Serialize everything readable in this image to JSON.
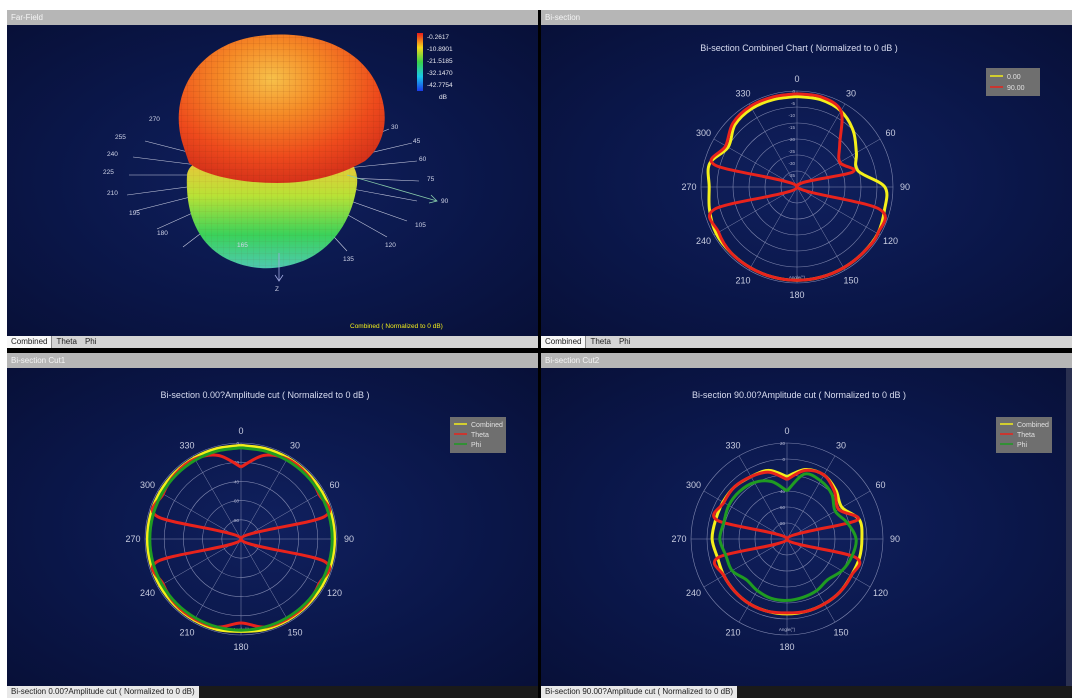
{
  "colors": {
    "combined": "#f4ef1a",
    "theta": "#e8231c",
    "phi": "#1f9b22",
    "ring": "#8088b0",
    "panel_bg": "#0a1446"
  },
  "panels": {
    "farfield": {
      "title": "Far-Field",
      "caption": "Combined ( Normalized to 0 dB)",
      "tabs": [
        "Combined",
        "Theta",
        "Phi"
      ],
      "active_tab": 0,
      "colorbar_values": [
        "-0.2617",
        "-10.8901",
        "-21.5185",
        "-32.1470",
        "-42.7754"
      ],
      "colorbar_unit": "dB",
      "angle_labels": [
        "270",
        "255",
        "240",
        "225",
        "210",
        "195",
        "180",
        "165",
        "135",
        "120",
        "105",
        "90",
        "75",
        "60",
        "45",
        "30"
      ],
      "z_label": "Z"
    },
    "bisection": {
      "title": "Bi-section",
      "chart_title": "Bi-section Combined Chart  ( Normalized to 0 dB )",
      "tabs": [
        "Combined",
        "Theta",
        "Phi"
      ],
      "active_tab": 0,
      "legend": [
        "0.00",
        "90.00"
      ],
      "radial_ticks": [
        "0",
        "-5",
        "-10",
        "-15",
        "-20",
        "-25",
        "-30",
        "-35"
      ]
    },
    "cut1": {
      "title": "Bi-section Cut1",
      "chart_title": "Bi-section 0.00?Amplitude cut  ( Normalized to 0 dB )",
      "status": "Bi-section 0.00?Amplitude cut  ( Normalized to 0 dB)",
      "legend": [
        "Combined",
        "Theta",
        "Phi"
      ],
      "radial_ticks": [
        "0",
        "-20",
        "-40",
        "-60",
        "-80"
      ]
    },
    "cut2": {
      "title": "Bi-section Cut2",
      "chart_title": "Bi-section 90.00?Amplitude cut  ( Normalized to 0 dB )",
      "status": "Bi-section 90.00?Amplitude cut  ( Normalized to 0 dB)",
      "legend": [
        "Combined",
        "Theta",
        "Phi"
      ],
      "radial_ticks": [
        "20",
        "0",
        "-20",
        "-40",
        "-60",
        "-80"
      ]
    }
  },
  "polar": {
    "angle_labels": [
      "0",
      "30",
      "60",
      "90",
      "120",
      "150",
      "180",
      "210",
      "240",
      "270",
      "300",
      "330"
    ],
    "angle_axis_title": "Angle(°)"
  },
  "chart_data": [
    {
      "type": "polar-line",
      "title": "Bi-section Combined Chart  ( Normalized to 0 dB )",
      "angle_unit": "deg",
      "rlim": [
        -35,
        0
      ],
      "theta": [
        0,
        15,
        30,
        45,
        60,
        75,
        90,
        105,
        120,
        135,
        150,
        165,
        180,
        195,
        210,
        225,
        240,
        255,
        270,
        285,
        300,
        315,
        330,
        345,
        360
      ],
      "series": [
        {
          "name": "0.00",
          "r": [
            -2,
            -2,
            -3,
            -6,
            -10,
            -12,
            -3,
            -2,
            -1,
            -1,
            -1,
            -1,
            -1,
            -1,
            -1,
            -1,
            -1,
            -2,
            -3,
            -2,
            -6,
            -3,
            -2,
            -2,
            -2
          ]
        },
        {
          "name": "90.00",
          "r": [
            -1,
            -1,
            -3,
            -13,
            -17,
            -14,
            -35,
            -4,
            -1,
            -1,
            -1,
            -1,
            -1,
            -1,
            -1,
            -1,
            -2,
            -4,
            -35,
            -4,
            -5,
            -2,
            -1,
            -1,
            -1
          ]
        }
      ]
    },
    {
      "type": "polar-line",
      "title": "Bi-section 0.00?Amplitude cut  ( Normalized to 0 dB )",
      "angle_unit": "deg",
      "rlim": [
        -80,
        0
      ],
      "theta": [
        0,
        15,
        30,
        45,
        60,
        75,
        90,
        105,
        120,
        135,
        150,
        165,
        180,
        195,
        210,
        225,
        240,
        255,
        270,
        285,
        300,
        315,
        330,
        345,
        360
      ],
      "series": [
        {
          "name": "Combined",
          "r": [
            -2,
            -2,
            -2,
            -2,
            -2,
            -2,
            -2,
            -2,
            -2,
            -2,
            -2,
            -2,
            -3,
            -2,
            -2,
            -2,
            -2,
            -2,
            -2,
            -2,
            -2,
            -2,
            -2,
            -2,
            -2
          ]
        },
        {
          "name": "Theta",
          "r": [
            -20,
            -8,
            -3,
            -3,
            -5,
            -8,
            -80,
            -8,
            -5,
            -3,
            -3,
            -4,
            -10,
            -4,
            -3,
            -3,
            -5,
            -8,
            -80,
            -8,
            -5,
            -3,
            -3,
            -8,
            -20
          ]
        },
        {
          "name": "Phi",
          "r": [
            -4,
            -4,
            -4,
            -4,
            -4,
            -4,
            -4,
            -4,
            -4,
            -4,
            -4,
            -4,
            -4,
            -4,
            -4,
            -4,
            -4,
            -4,
            -4,
            -4,
            -4,
            -4,
            -4,
            -4,
            -4
          ]
        }
      ]
    },
    {
      "type": "polar-line",
      "title": "Bi-section 90.00?Amplitude cut  ( Normalized to 0 dB )",
      "angle_unit": "deg",
      "rlim": [
        -80,
        20
      ],
      "theta": [
        0,
        15,
        30,
        45,
        60,
        75,
        90,
        105,
        120,
        135,
        150,
        165,
        180,
        195,
        210,
        225,
        240,
        255,
        270,
        285,
        300,
        315,
        330,
        345,
        360
      ],
      "series": [
        {
          "name": "Combined",
          "r": [
            -15,
            -5,
            -3,
            -8,
            -14,
            -2,
            -2,
            -2,
            -3,
            -2,
            -2,
            -2,
            -2,
            -2,
            -2,
            -3,
            -4,
            -5,
            -2,
            -3,
            -3,
            -3,
            -5,
            -6,
            -15
          ]
        },
        {
          "name": "Theta",
          "r": [
            -18,
            -6,
            -3,
            -10,
            -18,
            -5,
            -80,
            -6,
            -3,
            -2,
            -2,
            -2,
            -3,
            -2,
            -2,
            -3,
            -4,
            -6,
            -80,
            -5,
            -4,
            -3,
            -5,
            -8,
            -18
          ]
        },
        {
          "name": "Phi",
          "r": [
            -30,
            -10,
            -10,
            -14,
            -22,
            -15,
            -8,
            -10,
            -14,
            -20,
            -18,
            -17,
            -16,
            -16,
            -18,
            -20,
            -14,
            -14,
            -10,
            -12,
            -10,
            -10,
            -12,
            -18,
            -30
          ]
        }
      ]
    }
  ]
}
